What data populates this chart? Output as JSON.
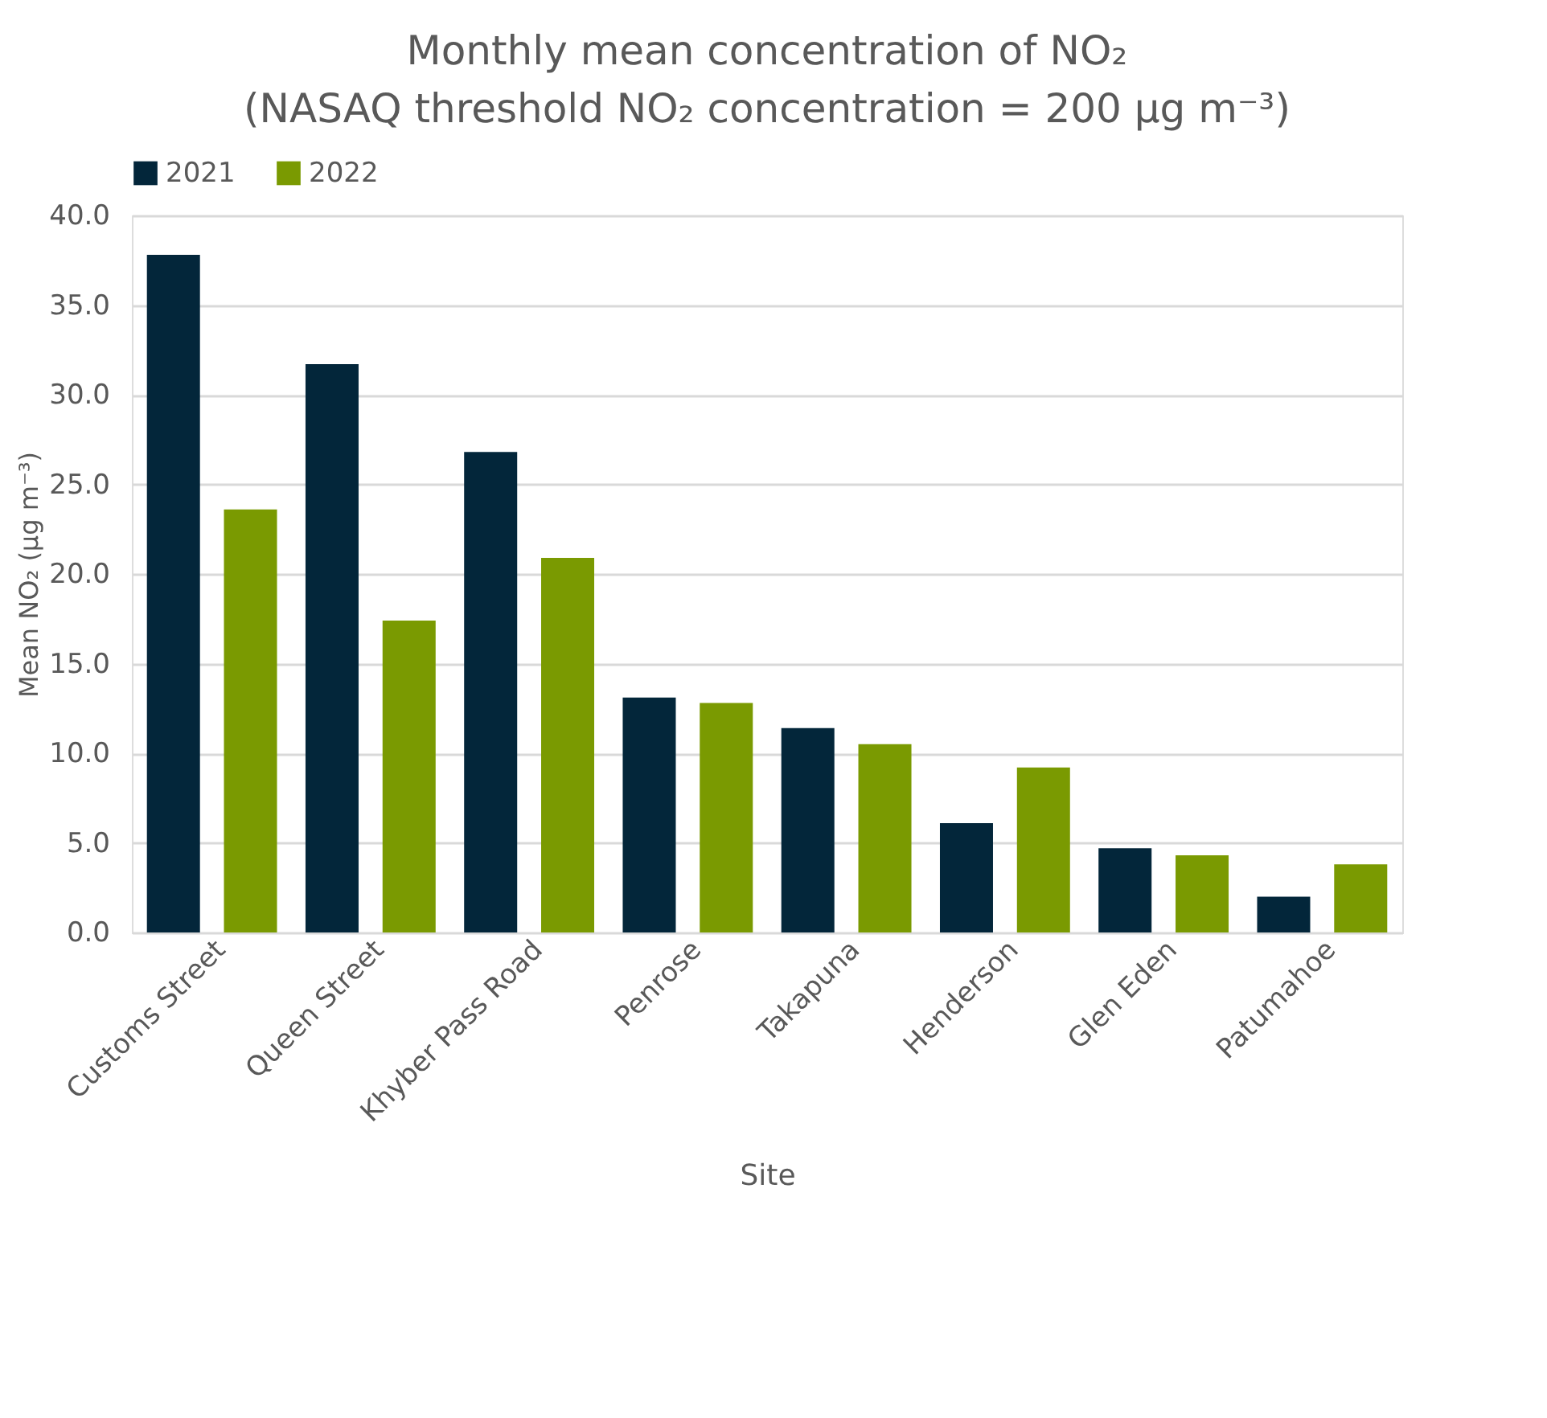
{
  "chart_data": {
    "type": "bar",
    "title": [
      "Monthly mean concentration of NO₂",
      "(NASAQ threshold NO₂ concentration = 200 µg m⁻³)"
    ],
    "xlabel": "Site",
    "ylabel": "Mean NO₂ (µg m⁻³)",
    "categories": [
      "Customs Street",
      "Queen Street",
      "Khyber Pass Road",
      "Penrose",
      "Takapuna",
      "Henderson",
      "Glen Eden",
      "Patumahoe"
    ],
    "series": [
      {
        "name": "2021",
        "color": "#03263a",
        "values": [
          37.8,
          31.7,
          26.8,
          13.1,
          11.4,
          6.1,
          4.7,
          2.0
        ]
      },
      {
        "name": "2022",
        "color": "#7a9a01",
        "values": [
          23.6,
          17.4,
          20.9,
          12.8,
          10.5,
          9.2,
          4.3,
          3.8
        ]
      }
    ],
    "ylim": [
      0,
      40
    ],
    "yticks": [
      {
        "value": 0,
        "label": "0.0"
      },
      {
        "value": 5,
        "label": "5.0"
      },
      {
        "value": 10,
        "label": "10.0"
      },
      {
        "value": 15,
        "label": "15.0"
      },
      {
        "value": 20,
        "label": "20.0"
      },
      {
        "value": 25,
        "label": "25.0"
      },
      {
        "value": 30,
        "label": "30.0"
      },
      {
        "value": 35,
        "label": "35.0"
      },
      {
        "value": 40,
        "label": "40.0"
      }
    ],
    "grid": "y",
    "legend": "top"
  }
}
